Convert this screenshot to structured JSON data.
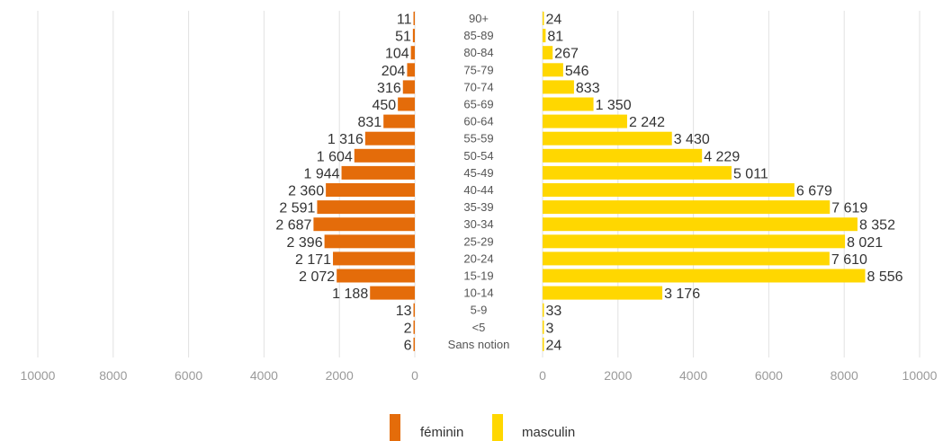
{
  "chart_data": {
    "type": "bar",
    "orientation": "horizontal",
    "layout": "population-pyramid",
    "title": "",
    "xlabel": "",
    "ylabel": "",
    "categories": [
      "90+",
      "85-89",
      "80-84",
      "75-79",
      "70-74",
      "65-69",
      "60-64",
      "55-59",
      "50-54",
      "45-49",
      "40-44",
      "35-39",
      "30-34",
      "25-29",
      "20-24",
      "15-19",
      "10-14",
      "5-9",
      "<5",
      "Sans notion"
    ],
    "series": [
      {
        "name": "féminin",
        "side": "left",
        "color": "#E46C0A",
        "values": [
          11,
          51,
          104,
          204,
          316,
          450,
          831,
          1316,
          1604,
          1944,
          2360,
          2591,
          2687,
          2396,
          2171,
          2072,
          1188,
          13,
          2,
          6
        ],
        "labels": [
          "11",
          "51",
          "104",
          "204",
          "316",
          "450",
          "831",
          "1 316",
          "1 604",
          "1 944",
          "2 360",
          "2 591",
          "2 687",
          "2 396",
          "2 171",
          "2 072",
          "1 188",
          "13",
          "2",
          "6"
        ]
      },
      {
        "name": "masculin",
        "side": "right",
        "color": "#FFD700",
        "values": [
          24,
          81,
          267,
          546,
          833,
          1350,
          2242,
          3430,
          4229,
          5011,
          6679,
          7619,
          8352,
          8021,
          7610,
          8556,
          3176,
          33,
          3,
          24
        ],
        "labels": [
          "24",
          "81",
          "267",
          "546",
          "833",
          "1 350",
          "2 242",
          "3 430",
          "4 229",
          "5 011",
          "6 679",
          "7 619",
          "8 352",
          "8 021",
          "7 610",
          "8 556",
          "3 176",
          "33",
          "3",
          "24"
        ]
      }
    ],
    "left_axis": {
      "range": [
        10000,
        0
      ],
      "ticks": [
        "10000",
        "8000",
        "6000",
        "4000",
        "2000",
        "0"
      ],
      "tick_values": [
        10000,
        8000,
        6000,
        4000,
        2000,
        0
      ]
    },
    "right_axis": {
      "range": [
        0,
        10000
      ],
      "ticks": [
        "0",
        "2000",
        "4000",
        "6000",
        "8000",
        "10000"
      ],
      "tick_values": [
        0,
        2000,
        4000,
        6000,
        8000,
        10000
      ]
    },
    "grid": true,
    "legend": {
      "position": "bottom-center",
      "entries": [
        "féminin",
        "masculin"
      ]
    }
  }
}
